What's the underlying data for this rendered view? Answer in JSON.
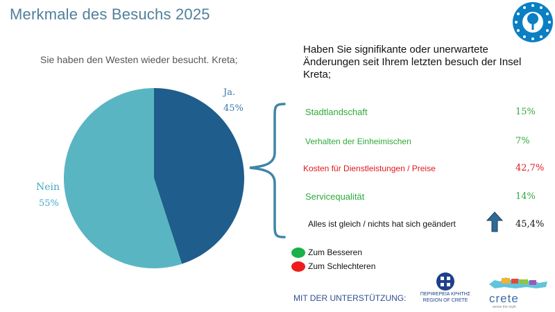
{
  "title": "Merkmale des Besuchs 2025",
  "chart_data": {
    "type": "pie",
    "question": "Sie haben den Westen wieder besucht. Kreta;",
    "slices": [
      {
        "label": "Ja",
        "label_text": "Ja.",
        "value": 45,
        "value_label": "45%",
        "color": "#1f5d8c"
      },
      {
        "label": "Nein",
        "label_text": "Nein",
        "value": 55,
        "value_label": "55%",
        "color": "#5ab5c3"
      }
    ]
  },
  "changes": {
    "question": "Haben Sie signifikante oder unerwartete Änderungen seit Ihrem letzten besuch der Insel Kreta;",
    "rows": [
      {
        "label": "Stadtlandschaft",
        "value": "15%",
        "status": "green"
      },
      {
        "label": "Verhalten der Einheimischen",
        "value": "7%",
        "status": "green"
      },
      {
        "label": "Kosten für Dienstleistungen / Preise",
        "value": "42,7%",
        "status": "red"
      },
      {
        "label": "Servicequalität",
        "value": "14%",
        "status": "green"
      },
      {
        "label": "Alles ist gleich / nichts hat sich geändert",
        "value": "45,4%",
        "status": "black"
      }
    ]
  },
  "legend": {
    "better": "Zum Besseren",
    "worse": "Zum Schlechteren",
    "better_color": "#1ab04a",
    "worse_color": "#ee1c1c"
  },
  "footer": {
    "support": "MIT DER UNTERSTÜTZUNG:",
    "region_logo": "ΠΕΡΙΦΕΡΕΙΑ ΚΡΗΤΗΣ REGION OF CRETE",
    "crete_logo": "crete",
    "crete_tagline": "sense the myth"
  }
}
